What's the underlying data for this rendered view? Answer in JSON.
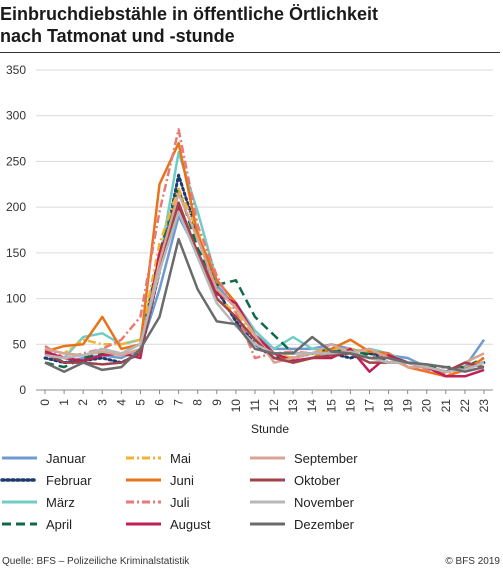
{
  "chart_data": {
    "type": "line",
    "title": "Einbruchdiebstähle in öffentliche Örtlichkeit nach Tatmonat und -stunde",
    "xlabel": "Stunde",
    "ylabel": "",
    "ylim": [
      0,
      350
    ],
    "yticks": [
      0,
      50,
      100,
      150,
      200,
      250,
      300,
      350
    ],
    "x": [
      "0",
      "1",
      "2",
      "3",
      "4",
      "5",
      "6",
      "7",
      "8",
      "9",
      "10",
      "11",
      "12",
      "13",
      "14",
      "15",
      "16",
      "17",
      "18",
      "19",
      "20",
      "21",
      "22",
      "23"
    ],
    "grid": true,
    "legend_position": "bottom",
    "series": [
      {
        "name": "Januar",
        "color": "#6f9bd1",
        "style": "solid",
        "values": [
          45,
          30,
          35,
          38,
          35,
          45,
          110,
          190,
          150,
          115,
          90,
          60,
          45,
          45,
          45,
          50,
          45,
          40,
          38,
          35,
          25,
          20,
          25,
          55
        ]
      },
      {
        "name": "Februar",
        "color": "#1f3a6e",
        "style": "dotted",
        "values": [
          35,
          30,
          32,
          35,
          30,
          40,
          130,
          235,
          170,
          110,
          75,
          50,
          35,
          35,
          40,
          40,
          35,
          40,
          35,
          30,
          25,
          20,
          25,
          30
        ]
      },
      {
        "name": "März",
        "color": "#6fcdc5",
        "style": "solid",
        "values": [
          38,
          35,
          58,
          62,
          50,
          55,
          140,
          260,
          195,
          120,
          95,
          65,
          45,
          58,
          45,
          45,
          42,
          45,
          40,
          30,
          25,
          20,
          25,
          30
        ]
      },
      {
        "name": "April",
        "color": "#0f6a48",
        "style": "dashed",
        "values": [
          30,
          25,
          35,
          40,
          40,
          50,
          150,
          220,
          155,
          115,
          120,
          80,
          60,
          40,
          40,
          45,
          40,
          40,
          30,
          30,
          25,
          25,
          25,
          35
        ]
      },
      {
        "name": "Mai",
        "color": "#f4b233",
        "style": "dashdot",
        "values": [
          45,
          40,
          55,
          50,
          50,
          55,
          160,
          220,
          175,
          100,
          85,
          55,
          40,
          35,
          40,
          45,
          45,
          42,
          40,
          25,
          25,
          20,
          30,
          40
        ]
      },
      {
        "name": "Juni",
        "color": "#e8731a",
        "style": "solid",
        "values": [
          42,
          48,
          50,
          80,
          45,
          50,
          225,
          270,
          170,
          120,
          95,
          60,
          40,
          30,
          35,
          45,
          55,
          42,
          40,
          25,
          20,
          15,
          22,
          35
        ]
      },
      {
        "name": "Juli",
        "color": "#e77a76",
        "style": "dashdot",
        "values": [
          48,
          35,
          40,
          45,
          55,
          80,
          195,
          285,
          180,
          125,
          85,
          35,
          40,
          42,
          40,
          40,
          40,
          35,
          40,
          25,
          22,
          18,
          25,
          30
        ]
      },
      {
        "name": "August",
        "color": "#c21e56",
        "style": "solid",
        "values": [
          42,
          35,
          32,
          38,
          40,
          35,
          150,
          200,
          150,
          105,
          95,
          60,
          40,
          32,
          35,
          35,
          45,
          20,
          38,
          30,
          25,
          15,
          15,
          22
        ]
      },
      {
        "name": "September",
        "color": "#d8a493",
        "style": "solid",
        "values": [
          45,
          40,
          38,
          42,
          38,
          45,
          140,
          215,
          165,
          110,
          90,
          60,
          30,
          35,
          40,
          50,
          40,
          45,
          35,
          25,
          25,
          20,
          30,
          40
        ]
      },
      {
        "name": "Oktober",
        "color": "#a0424b",
        "style": "solid",
        "values": [
          40,
          30,
          30,
          28,
          30,
          40,
          130,
          205,
          150,
          100,
          80,
          55,
          35,
          30,
          35,
          38,
          40,
          30,
          30,
          30,
          25,
          20,
          30,
          25
        ]
      },
      {
        "name": "November",
        "color": "#b8b8b8",
        "style": "solid",
        "values": [
          38,
          35,
          38,
          45,
          40,
          50,
          130,
          195,
          145,
          95,
          70,
          50,
          40,
          40,
          40,
          40,
          42,
          35,
          30,
          30,
          25,
          20,
          22,
          30
        ]
      },
      {
        "name": "Dezember",
        "color": "#6b6b6b",
        "style": "solid",
        "values": [
          30,
          20,
          30,
          22,
          25,
          45,
          80,
          165,
          110,
          75,
          72,
          45,
          40,
          40,
          58,
          42,
          40,
          35,
          35,
          30,
          28,
          25,
          20,
          25
        ]
      }
    ]
  },
  "header": {
    "title_line1": "Einbruchdiebstähle in öffentliche Örtlichkeit",
    "title_line2": "nach Tatmonat und -stunde"
  },
  "footer": {
    "source": "Quelle: BFS – Polizeiliche Kriminalstatistik",
    "copyright": "© BFS 2019"
  }
}
